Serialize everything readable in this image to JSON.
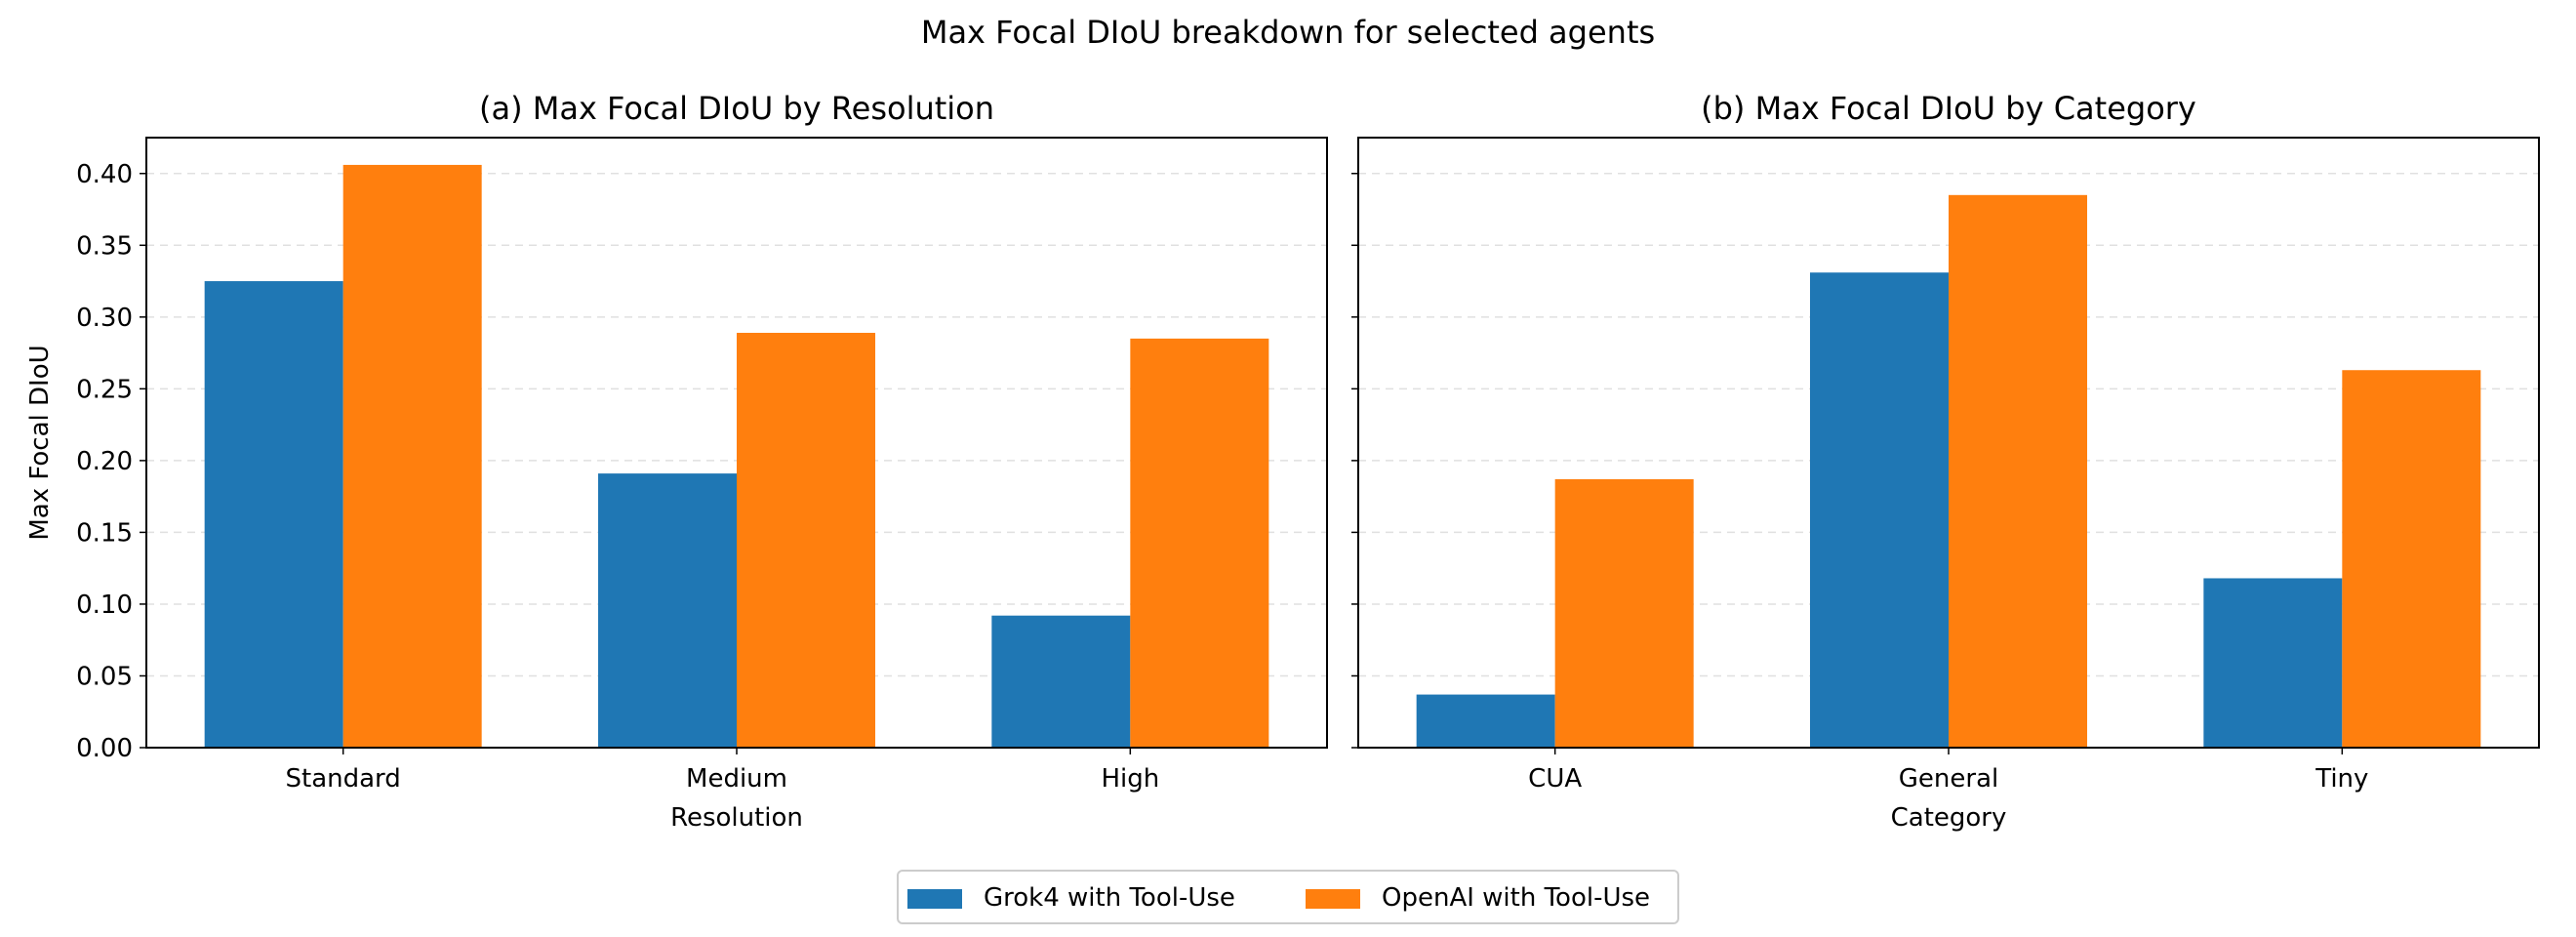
{
  "chart_data": {
    "title": "Max Focal DIoU breakdown for selected agents",
    "legend": {
      "position": "bottom-center",
      "entries": [
        {
          "label": "Grok4 with Tool-Use",
          "color": "#1f77b4"
        },
        {
          "label": "OpenAI with Tool-Use",
          "color": "#ff7f0e"
        }
      ]
    },
    "charts": [
      {
        "type": "bar",
        "title": "(a) Max Focal DIoU by Resolution",
        "xlabel": "Resolution",
        "ylabel": "Max Focal DIoU",
        "categories": [
          "Standard",
          "Medium",
          "High"
        ],
        "series": [
          {
            "name": "Grok4 with Tool-Use",
            "color": "#1f77b4",
            "values": [
              0.325,
              0.191,
              0.092
            ]
          },
          {
            "name": "OpenAI with Tool-Use",
            "color": "#ff7f0e",
            "values": [
              0.406,
              0.289,
              0.285
            ]
          }
        ],
        "ylim": [
          0,
          0.425
        ],
        "yticks": [
          "0.00",
          "0.05",
          "0.10",
          "0.15",
          "0.20",
          "0.25",
          "0.30",
          "0.35",
          "0.40"
        ],
        "grid": "y-dashed"
      },
      {
        "type": "bar",
        "title": "(b) Max Focal DIoU by Category",
        "xlabel": "Category",
        "ylabel": "",
        "categories": [
          "CUA",
          "General",
          "Tiny"
        ],
        "series": [
          {
            "name": "Grok4 with Tool-Use",
            "color": "#1f77b4",
            "values": [
              0.037,
              0.331,
              0.118
            ]
          },
          {
            "name": "OpenAI with Tool-Use",
            "color": "#ff7f0e",
            "values": [
              0.187,
              0.385,
              0.263
            ]
          }
        ],
        "ylim": [
          0,
          0.425
        ],
        "yticks": [
          "0.00",
          "0.05",
          "0.10",
          "0.15",
          "0.20",
          "0.25",
          "0.30",
          "0.35",
          "0.40"
        ],
        "grid": "y-dashed"
      }
    ]
  }
}
